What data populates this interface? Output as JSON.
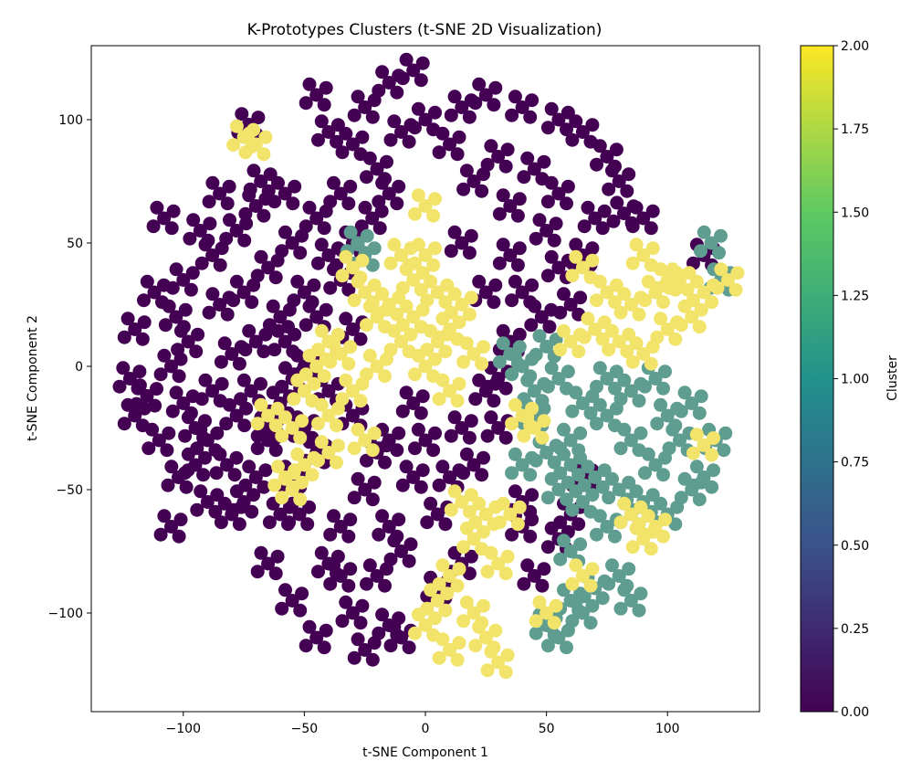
{
  "chart_data": {
    "type": "scatter",
    "title": "K-Prototypes Clusters (t-SNE 2D Visualization)",
    "xlabel": "t-SNE Component 1",
    "ylabel": "t-SNE Component 2",
    "xlim": [
      -138,
      138
    ],
    "ylim": [
      -140,
      130
    ],
    "x_ticks": [
      -100,
      -50,
      0,
      50,
      100
    ],
    "x_tick_labels": [
      "−100",
      "−50",
      "0",
      "50",
      "100"
    ],
    "y_ticks": [
      -100,
      -50,
      0,
      50,
      100
    ],
    "y_tick_labels": [
      "−100",
      "−50",
      "0",
      "50",
      "100"
    ],
    "grid": false,
    "colorbar": {
      "label": "Cluster",
      "min": 0.0,
      "max": 2.0,
      "ticks": [
        0.0,
        0.25,
        0.5,
        0.75,
        1.0,
        1.25,
        1.5,
        1.75,
        2.0
      ],
      "tick_labels": [
        "0.00",
        "0.25",
        "0.50",
        "0.75",
        "1.00",
        "1.25",
        "1.50",
        "1.75",
        "2.00"
      ],
      "colormap": "viridis",
      "colors": [
        "#440154",
        "#3b528b",
        "#21918c",
        "#5ec962",
        "#fde725"
      ]
    },
    "cluster_colors": [
      "#440154",
      "#5e9d8f",
      "#f2e46a"
    ],
    "series": [
      {
        "cluster": 0,
        "points": [
          [
            -120,
            15
          ],
          [
            -112,
            30
          ],
          [
            -103,
            20
          ],
          [
            -122,
            -5
          ],
          [
            -115,
            -12
          ],
          [
            -105,
            0
          ],
          [
            -98,
            10
          ],
          [
            -110,
            -30
          ],
          [
            -102,
            -45
          ],
          [
            -95,
            -40
          ],
          [
            -100,
            35
          ],
          [
            -88,
            45
          ],
          [
            -78,
            55
          ],
          [
            -93,
            55
          ],
          [
            -85,
            25
          ],
          [
            -75,
            30
          ],
          [
            -80,
            5
          ],
          [
            -70,
            10
          ],
          [
            -88,
            -10
          ],
          [
            -78,
            -20
          ],
          [
            -65,
            -30
          ],
          [
            -90,
            -55
          ],
          [
            -75,
            -55
          ],
          [
            -60,
            -60
          ],
          [
            -82,
            -40
          ],
          [
            -70,
            -45
          ],
          [
            -55,
            -45
          ],
          [
            -60,
            20
          ],
          [
            -65,
            40
          ],
          [
            -55,
            50
          ],
          [
            -70,
            65
          ],
          [
            -58,
            70
          ],
          [
            -45,
            60
          ],
          [
            -40,
            45
          ],
          [
            -50,
            30
          ],
          [
            -35,
            35
          ],
          [
            -50,
            0
          ],
          [
            -40,
            -10
          ],
          [
            -30,
            15
          ],
          [
            -60,
            -15
          ],
          [
            -20,
            80
          ],
          [
            -30,
            90
          ],
          [
            -40,
            95
          ],
          [
            -25,
            105
          ],
          [
            -15,
            115
          ],
          [
            -5,
            120
          ],
          [
            -10,
            95
          ],
          [
            -45,
            110
          ],
          [
            -35,
            70
          ],
          [
            -22,
            60
          ],
          [
            -30,
            50
          ],
          [
            15,
            105
          ],
          [
            25,
            110
          ],
          [
            40,
            105
          ],
          [
            55,
            100
          ],
          [
            65,
            95
          ],
          [
            30,
            85
          ],
          [
            45,
            80
          ],
          [
            20,
            75
          ],
          [
            35,
            65
          ],
          [
            55,
            70
          ],
          [
            75,
            85
          ],
          [
            80,
            75
          ],
          [
            70,
            60
          ],
          [
            35,
            45
          ],
          [
            15,
            50
          ],
          [
            25,
            30
          ],
          [
            40,
            30
          ],
          [
            55,
            40
          ],
          [
            60,
            25
          ],
          [
            48,
            20
          ],
          [
            -5,
            -15
          ],
          [
            -15,
            -30
          ],
          [
            -25,
            -50
          ],
          [
            -35,
            -65
          ],
          [
            -15,
            -65
          ],
          [
            -5,
            -45
          ],
          [
            -40,
            -80
          ],
          [
            -55,
            -95
          ],
          [
            -45,
            -110
          ],
          [
            -30,
            -100
          ],
          [
            -20,
            -85
          ],
          [
            -10,
            -75
          ],
          [
            -25,
            -115
          ],
          [
            -15,
            -105
          ],
          [
            5,
            -60
          ],
          [
            10,
            -45
          ],
          [
            20,
            -40
          ],
          [
            0,
            -30
          ],
          [
            15,
            -25
          ],
          [
            30,
            -5
          ],
          [
            35,
            10
          ],
          [
            30,
            -25
          ],
          [
            40,
            -55
          ],
          [
            -10,
            -110
          ],
          [
            5,
            -90
          ],
          [
            60,
            -60
          ],
          [
            55,
            -70
          ],
          [
            65,
            -45
          ],
          [
            -72,
            -10
          ],
          [
            -50,
            -25
          ],
          [
            -100,
            -15
          ],
          [
            -120,
            -20
          ],
          [
            -65,
            -25
          ],
          [
            -90,
            -30
          ],
          [
            -80,
            -60
          ],
          [
            -65,
            -80
          ],
          [
            -52,
            -60
          ],
          [
            -108,
            60
          ],
          [
            -95,
            -25
          ],
          [
            -105,
            -65
          ],
          [
            -35,
            -85
          ],
          [
            -20,
            -35
          ],
          [
            -45,
            -35
          ],
          [
            -15,
            70
          ],
          [
            0,
            100
          ],
          [
            10,
            90
          ],
          [
            82,
            62
          ],
          [
            115,
            45
          ],
          [
            50,
            55
          ],
          [
            65,
            45
          ],
          [
            25,
            -10
          ],
          [
            40,
            -65
          ],
          [
            45,
            -85
          ],
          [
            90,
            60
          ],
          [
            -58,
            10
          ],
          [
            -45,
            20
          ],
          [
            -30,
            -20
          ],
          [
            -55,
            -5
          ],
          [
            15,
            -80
          ],
          [
            -85,
            70
          ],
          [
            -68,
            75
          ],
          [
            -73,
            98
          ]
        ]
      },
      {
        "cluster": 1,
        "points": [
          [
            45,
            -10
          ],
          [
            55,
            -5
          ],
          [
            65,
            -15
          ],
          [
            75,
            -20
          ],
          [
            85,
            -30
          ],
          [
            95,
            -40
          ],
          [
            100,
            -20
          ],
          [
            110,
            -15
          ],
          [
            105,
            -30
          ],
          [
            115,
            -45
          ],
          [
            90,
            -55
          ],
          [
            80,
            -50
          ],
          [
            70,
            -45
          ],
          [
            60,
            -40
          ],
          [
            50,
            -35
          ],
          [
            40,
            -40
          ],
          [
            55,
            -50
          ],
          [
            65,
            -55
          ],
          [
            75,
            -65
          ],
          [
            85,
            -60
          ],
          [
            60,
            -95
          ],
          [
            70,
            -90
          ],
          [
            80,
            -85
          ],
          [
            55,
            -110
          ],
          [
            50,
            -105
          ],
          [
            65,
            -100
          ],
          [
            40,
            0
          ],
          [
            50,
            8
          ],
          [
            60,
            -30
          ],
          [
            95,
            -5
          ],
          [
            -25,
            45
          ],
          [
            -28,
            50
          ],
          [
            100,
            -60
          ],
          [
            110,
            -50
          ],
          [
            75,
            -5
          ],
          [
            85,
            -10
          ],
          [
            45,
            -20
          ],
          [
            120,
            -30
          ],
          [
            118,
            50
          ],
          [
            122,
            35
          ],
          [
            35,
            5
          ],
          [
            60,
            -75
          ],
          [
            85,
            -95
          ]
        ]
      },
      {
        "cluster": 2,
        "points": [
          [
            -30,
            40
          ],
          [
            -25,
            30
          ],
          [
            -15,
            25
          ],
          [
            -5,
            35
          ],
          [
            5,
            30
          ],
          [
            -10,
            45
          ],
          [
            0,
            45
          ],
          [
            -5,
            20
          ],
          [
            10,
            15
          ],
          [
            15,
            25
          ],
          [
            20,
            5
          ],
          [
            -40,
            10
          ],
          [
            -45,
            0
          ],
          [
            -50,
            -10
          ],
          [
            -55,
            -25
          ],
          [
            -50,
            -40
          ],
          [
            -55,
            -50
          ],
          [
            -40,
            -20
          ],
          [
            -30,
            -10
          ],
          [
            -20,
            0
          ],
          [
            -10,
            10
          ],
          [
            0,
            0
          ],
          [
            10,
            -10
          ],
          [
            -25,
            -30
          ],
          [
            -40,
            -35
          ],
          [
            -35,
            5
          ],
          [
            -20,
            20
          ],
          [
            5,
            10
          ],
          [
            70,
            15
          ],
          [
            80,
            10
          ],
          [
            90,
            5
          ],
          [
            100,
            15
          ],
          [
            110,
            20
          ],
          [
            105,
            35
          ],
          [
            95,
            30
          ],
          [
            85,
            25
          ],
          [
            75,
            30
          ],
          [
            65,
            40
          ],
          [
            60,
            10
          ],
          [
            90,
            45
          ],
          [
            115,
            30
          ],
          [
            125,
            35
          ],
          [
            15,
            -55
          ],
          [
            20,
            -70
          ],
          [
            25,
            -60
          ],
          [
            30,
            -80
          ],
          [
            10,
            -85
          ],
          [
            5,
            -95
          ],
          [
            0,
            -105
          ],
          [
            10,
            -115
          ],
          [
            20,
            -100
          ],
          [
            25,
            -110
          ],
          [
            30,
            -120
          ],
          [
            35,
            -60
          ],
          [
            -70,
            90
          ],
          [
            -75,
            93
          ],
          [
            0,
            65
          ],
          [
            -65,
            -20
          ],
          [
            -58,
            -45
          ],
          [
            85,
            -60
          ],
          [
            90,
            -70
          ],
          [
            95,
            -65
          ],
          [
            50,
            -100
          ],
          [
            65,
            -85
          ],
          [
            40,
            -20
          ],
          [
            45,
            -25
          ],
          [
            115,
            -32
          ],
          [
            100,
            35
          ]
        ]
      }
    ]
  }
}
